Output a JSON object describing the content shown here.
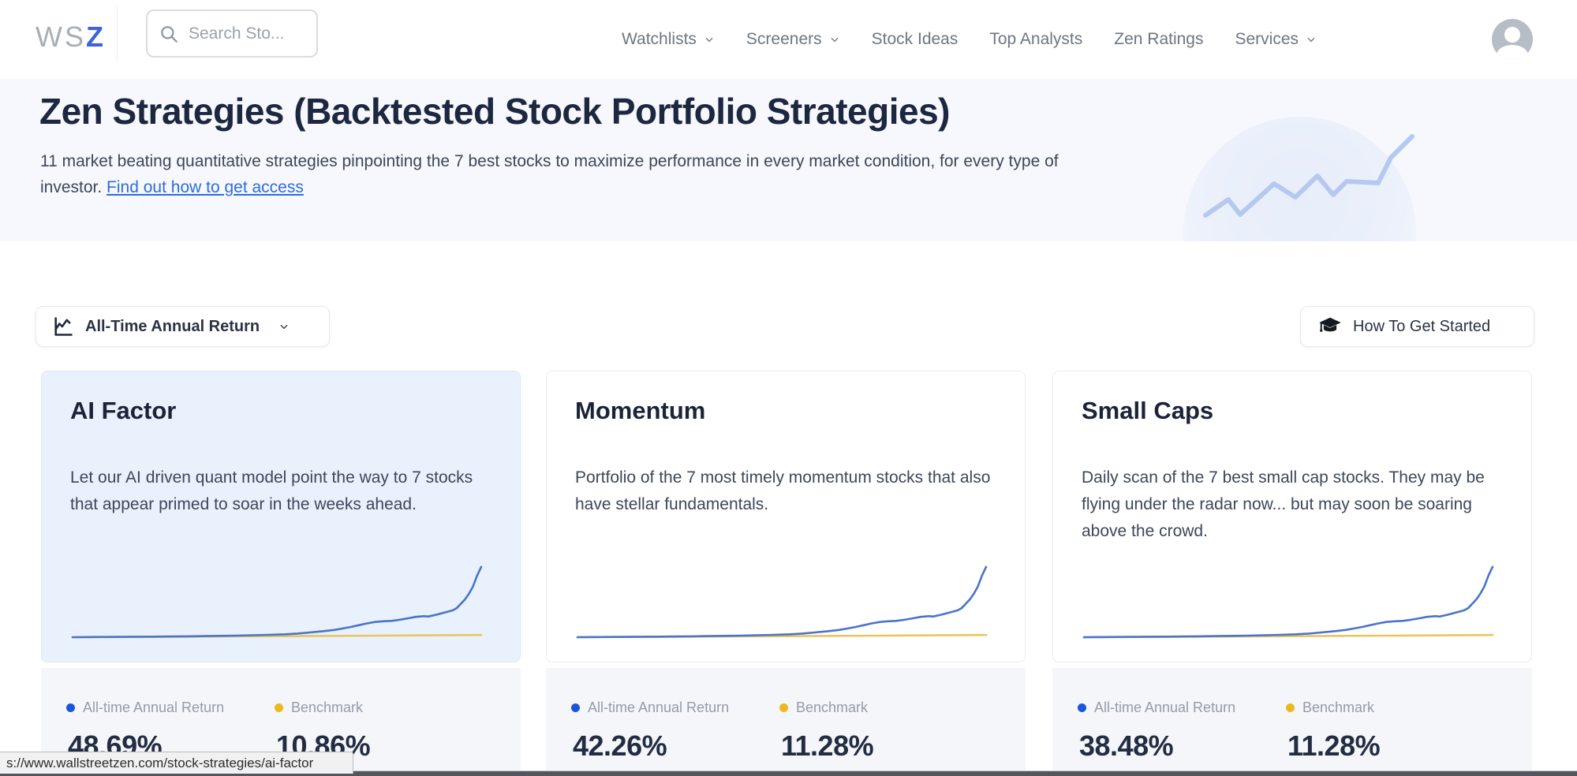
{
  "nav": {
    "logo": {
      "part1": "WS",
      "part2": "Z"
    },
    "search_placeholder": "Search Sto...",
    "items": [
      {
        "label": "Watchlists",
        "has_dropdown": true
      },
      {
        "label": "Screeners",
        "has_dropdown": true
      },
      {
        "label": "Stock Ideas",
        "has_dropdown": false
      },
      {
        "label": "Top Analysts",
        "has_dropdown": false
      },
      {
        "label": "Zen Ratings",
        "has_dropdown": false
      },
      {
        "label": "Services",
        "has_dropdown": true
      }
    ]
  },
  "hero": {
    "title": "Zen Strategies (Backtested Stock Portfolio Strategies)",
    "description": "11 market beating quantitative strategies pinpointing the 7 best stocks to maximize performance in every market condition, for every type of investor. ",
    "link_text": "Find out how to get access"
  },
  "controls": {
    "metric_dropdown_label": "All-Time Annual Return",
    "get_started_label": "How To Get Started"
  },
  "cards": [
    {
      "title": "AI Factor",
      "description": "Let our AI driven quant model point the way to 7 stocks that appear primed to soar in the weeks ahead.",
      "return_label": "All-time Annual Return",
      "return_value": "48.69%",
      "benchmark_label": "Benchmark",
      "benchmark_value": "10.86%",
      "highlighted": true
    },
    {
      "title": "Momentum",
      "description": "Portfolio of the 7 most timely momentum stocks that also have stellar fundamentals.",
      "return_label": "All-time Annual Return",
      "return_value": "42.26%",
      "benchmark_label": "Benchmark",
      "benchmark_value": "11.28%",
      "highlighted": false
    },
    {
      "title": "Small Caps",
      "description": "Daily scan of the 7 best small cap stocks. They may be flying under the radar now... but may soon be soaring above the crowd.",
      "return_label": "All-time Annual Return",
      "return_value": "38.48%",
      "benchmark_label": "Benchmark",
      "benchmark_value": "11.28%",
      "highlighted": false
    }
  ],
  "status_bar": {
    "url": "s://www.wallstreetzen.com/stock-strategies/ai-factor"
  },
  "colors": {
    "brand_blue": "#3e63dd",
    "link_blue": "#2f6be0",
    "strategy_line": "#4a74ca",
    "benchmark_line": "#e9c55f",
    "legend_dot_blue": "#1a56db",
    "legend_dot_yellow": "#ecb820",
    "highlight_card_bg": "#e9f1fc",
    "card_footer_bg": "#f4f6f9",
    "hero_bg": "#f6f8fd"
  },
  "chart_data": [
    {
      "type": "line",
      "title": "AI Factor cumulative growth vs benchmark (unlabeled sparkline)",
      "grid": false,
      "axes_hidden": true,
      "ylim": [
        0,
        100
      ],
      "series": [
        {
          "name": "All-time Annual Return",
          "color": "#4a74ca",
          "x": [
            0,
            4,
            8,
            12,
            16,
            20,
            24,
            28,
            32,
            36,
            40,
            44,
            48,
            52,
            55,
            58,
            61,
            64,
            66,
            68,
            70,
            72,
            74,
            76,
            78,
            80,
            82,
            84,
            86,
            87,
            89,
            91,
            93,
            94,
            95,
            96,
            97,
            98,
            99,
            100
          ],
          "y": [
            0,
            0.2,
            0.3,
            0.4,
            0.6,
            0.8,
            1,
            1.2,
            1.5,
            1.8,
            2.2,
            2.7,
            3.3,
            4,
            5,
            6.5,
            8,
            10,
            12,
            14,
            16.5,
            19,
            21,
            22,
            22.5,
            24,
            26,
            28,
            29,
            28.5,
            31,
            34,
            37,
            40,
            46,
            52,
            60,
            70,
            85,
            97
          ]
        },
        {
          "name": "Benchmark",
          "color": "#e9c55f",
          "x": [
            0,
            25,
            50,
            75,
            100
          ],
          "y": [
            0,
            0.7,
            1.4,
            2.2,
            3
          ]
        }
      ]
    },
    {
      "type": "line",
      "title": "Momentum cumulative growth vs benchmark (unlabeled sparkline)",
      "grid": false,
      "axes_hidden": true,
      "ylim": [
        0,
        100
      ],
      "series": [
        {
          "name": "All-time Annual Return",
          "color": "#4a74ca",
          "x": [
            0,
            4,
            8,
            12,
            16,
            20,
            24,
            28,
            32,
            36,
            40,
            44,
            48,
            52,
            55,
            58,
            61,
            64,
            66,
            68,
            70,
            72,
            74,
            76,
            78,
            80,
            82,
            84,
            86,
            87,
            89,
            91,
            93,
            94,
            95,
            96,
            97,
            98,
            99,
            100
          ],
          "y": [
            0,
            0.2,
            0.3,
            0.4,
            0.6,
            0.8,
            1,
            1.2,
            1.5,
            1.8,
            2.2,
            2.7,
            3.3,
            4,
            5,
            6.5,
            8,
            10,
            12,
            14,
            16.5,
            19,
            21,
            22,
            22.5,
            24,
            26,
            28,
            29,
            28.5,
            31,
            34,
            37,
            40,
            46,
            52,
            60,
            70,
            85,
            97
          ]
        },
        {
          "name": "Benchmark",
          "color": "#e9c55f",
          "x": [
            0,
            25,
            50,
            75,
            100
          ],
          "y": [
            0,
            0.7,
            1.4,
            2.2,
            3
          ]
        }
      ]
    },
    {
      "type": "line",
      "title": "Small Caps cumulative growth vs benchmark (unlabeled sparkline)",
      "grid": false,
      "axes_hidden": true,
      "ylim": [
        0,
        100
      ],
      "series": [
        {
          "name": "All-time Annual Return",
          "color": "#4a74ca",
          "x": [
            0,
            4,
            8,
            12,
            16,
            20,
            24,
            28,
            32,
            36,
            40,
            44,
            48,
            52,
            55,
            58,
            61,
            64,
            66,
            68,
            70,
            72,
            74,
            76,
            78,
            80,
            82,
            84,
            86,
            87,
            89,
            91,
            93,
            94,
            95,
            96,
            97,
            98,
            99,
            100
          ],
          "y": [
            0,
            0.2,
            0.3,
            0.4,
            0.6,
            0.8,
            1,
            1.2,
            1.5,
            1.8,
            2.2,
            2.7,
            3.3,
            4,
            5,
            6.5,
            8,
            10,
            12,
            14,
            16.5,
            19,
            21,
            22,
            22.5,
            24,
            26,
            28,
            29,
            28.5,
            31,
            34,
            37,
            40,
            46,
            52,
            60,
            70,
            85,
            97
          ]
        },
        {
          "name": "Benchmark",
          "color": "#e9c55f",
          "x": [
            0,
            25,
            50,
            75,
            100
          ],
          "y": [
            0,
            0.7,
            1.4,
            2.2,
            3
          ]
        }
      ]
    }
  ]
}
